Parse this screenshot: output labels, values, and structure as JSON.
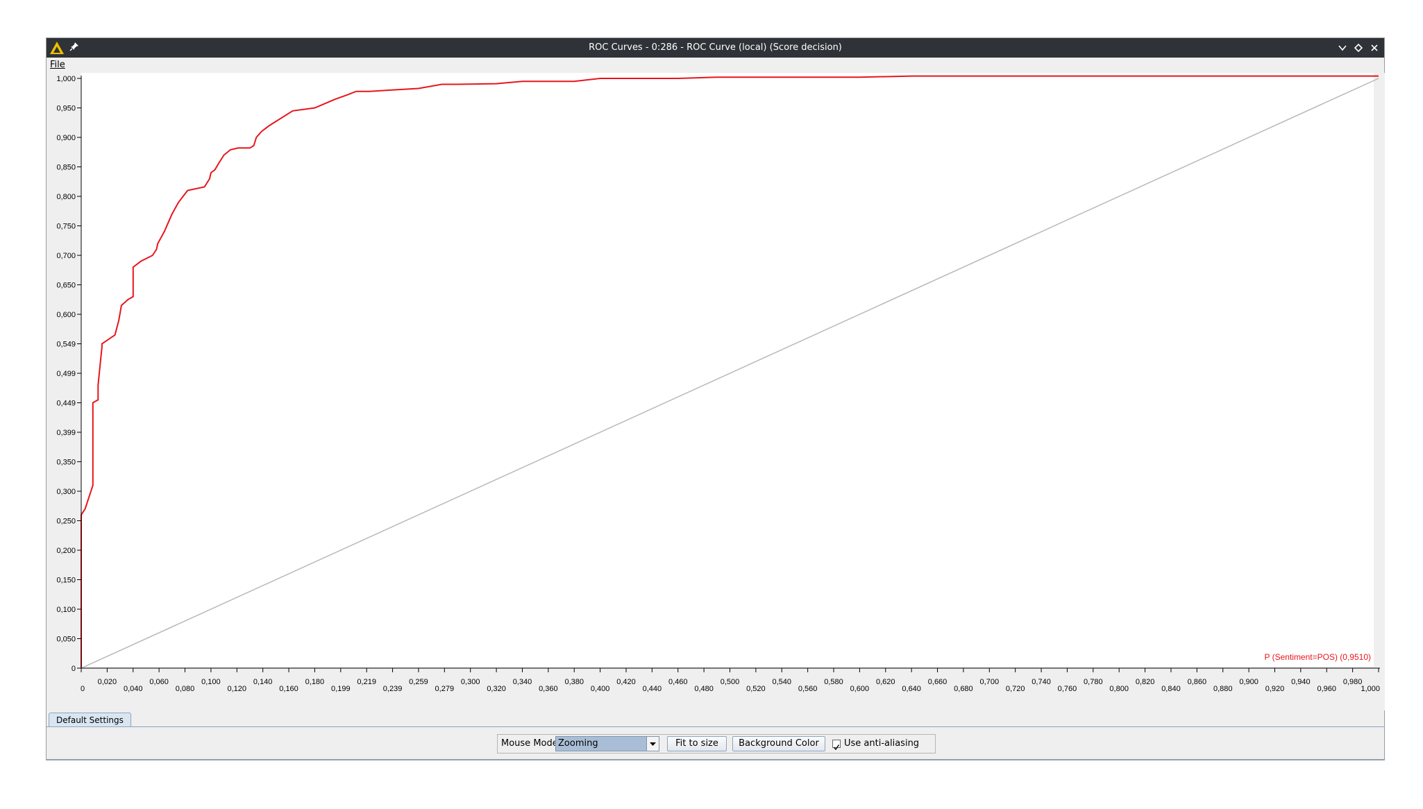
{
  "window": {
    "title": "ROC Curves - 0:286 - ROC Curve (local) (Score decision)"
  },
  "menu": {
    "file_label": "File"
  },
  "tabs": [
    {
      "label": "Default Settings"
    }
  ],
  "controls": {
    "mouse_mode_label": "Mouse Mode",
    "mouse_mode_value": "Zooming",
    "fit_to_size_label": "Fit to size",
    "background_color_label": "Background Color",
    "anti_aliasing_label": "Use anti-aliasing",
    "anti_aliasing_checked": true
  },
  "colors": {
    "curve": "#e8141c",
    "diagonal": "#b8b8b8",
    "titlebar": "#2f3338",
    "app_icon": "#f0c000"
  },
  "icons": {
    "app": "knime-triangle-icon",
    "pin": "pin-icon",
    "minimize": "chevron-down-icon",
    "maximize": "diamond-icon",
    "close": "close-icon",
    "dropdown": "triangle-down-icon",
    "checkbox": "checkmark-icon"
  },
  "chart_data": {
    "type": "line",
    "xlim": [
      0,
      1
    ],
    "ylim": [
      0,
      1
    ],
    "grid": false,
    "legend_placement": "bottom-right",
    "x_tick_labels": [
      "0",
      "0,020",
      "0,040",
      "0,060",
      "0,080",
      "0,100",
      "0,120",
      "0,140",
      "0,160",
      "0,180",
      "0,199",
      "0,219",
      "0,239",
      "0,259",
      "0,279",
      "0,300",
      "0,320",
      "0,340",
      "0,360",
      "0,380",
      "0,400",
      "0,420",
      "0,440",
      "0,460",
      "0,480",
      "0,500",
      "0,520",
      "0,540",
      "0,560",
      "0,580",
      "0,600",
      "0,620",
      "0,640",
      "0,660",
      "0,680",
      "0,700",
      "0,720",
      "0,740",
      "0,760",
      "0,780",
      "0,800",
      "0,820",
      "0,840",
      "0,860",
      "0,880",
      "0,900",
      "0,920",
      "0,940",
      "0,960",
      "0,980",
      "1,000"
    ],
    "y_tick_labels": [
      "0",
      "0,050",
      "0,100",
      "0,150",
      "0,200",
      "0,250",
      "0,300",
      "0,350",
      "0,399",
      "0,449",
      "0,499",
      "0,549",
      "0,600",
      "0,650",
      "0,700",
      "0,750",
      "0,800",
      "0,850",
      "0,900",
      "0,950",
      "1,000"
    ],
    "series": [
      {
        "name": "P (Sentiment=POS) (0,9510)",
        "role": "roc",
        "x": [
          0,
          0,
          0.003,
          0.009,
          0.009,
          0.013,
          0.013,
          0.016,
          0.016,
          0.026,
          0.029,
          0.031,
          0.036,
          0.04,
          0.04,
          0.043,
          0.046,
          0.055,
          0.058,
          0.059,
          0.061,
          0.064,
          0.07,
          0.075,
          0.082,
          0.095,
          0.099,
          0.1,
          0.103,
          0.106,
          0.11,
          0.115,
          0.121,
          0.13,
          0.133,
          0.135,
          0.139,
          0.145,
          0.163,
          0.18,
          0.196,
          0.205,
          0.212,
          0.222,
          0.237,
          0.26,
          0.278,
          0.29,
          0.32,
          0.34,
          0.38,
          0.4,
          0.46,
          0.49,
          0.6,
          0.64,
          1
        ],
        "y": [
          0,
          0.26,
          0.27,
          0.31,
          0.45,
          0.455,
          0.48,
          0.545,
          0.55,
          0.565,
          0.59,
          0.615,
          0.625,
          0.63,
          0.68,
          0.685,
          0.69,
          0.7,
          0.71,
          0.72,
          0.728,
          0.74,
          0.77,
          0.79,
          0.81,
          0.816,
          0.83,
          0.84,
          0.845,
          0.856,
          0.87,
          0.879,
          0.882,
          0.882,
          0.886,
          0.9,
          0.91,
          0.92,
          0.945,
          0.95,
          0.965,
          0.972,
          0.978,
          0.978,
          0.98,
          0.983,
          0.99,
          0.99,
          0.991,
          0.995,
          0.995,
          1,
          1,
          1.002,
          1.002,
          1.004,
          1.004
        ]
      },
      {
        "role": "diagonal",
        "x": [
          0,
          1
        ],
        "y": [
          0,
          1
        ]
      }
    ]
  }
}
